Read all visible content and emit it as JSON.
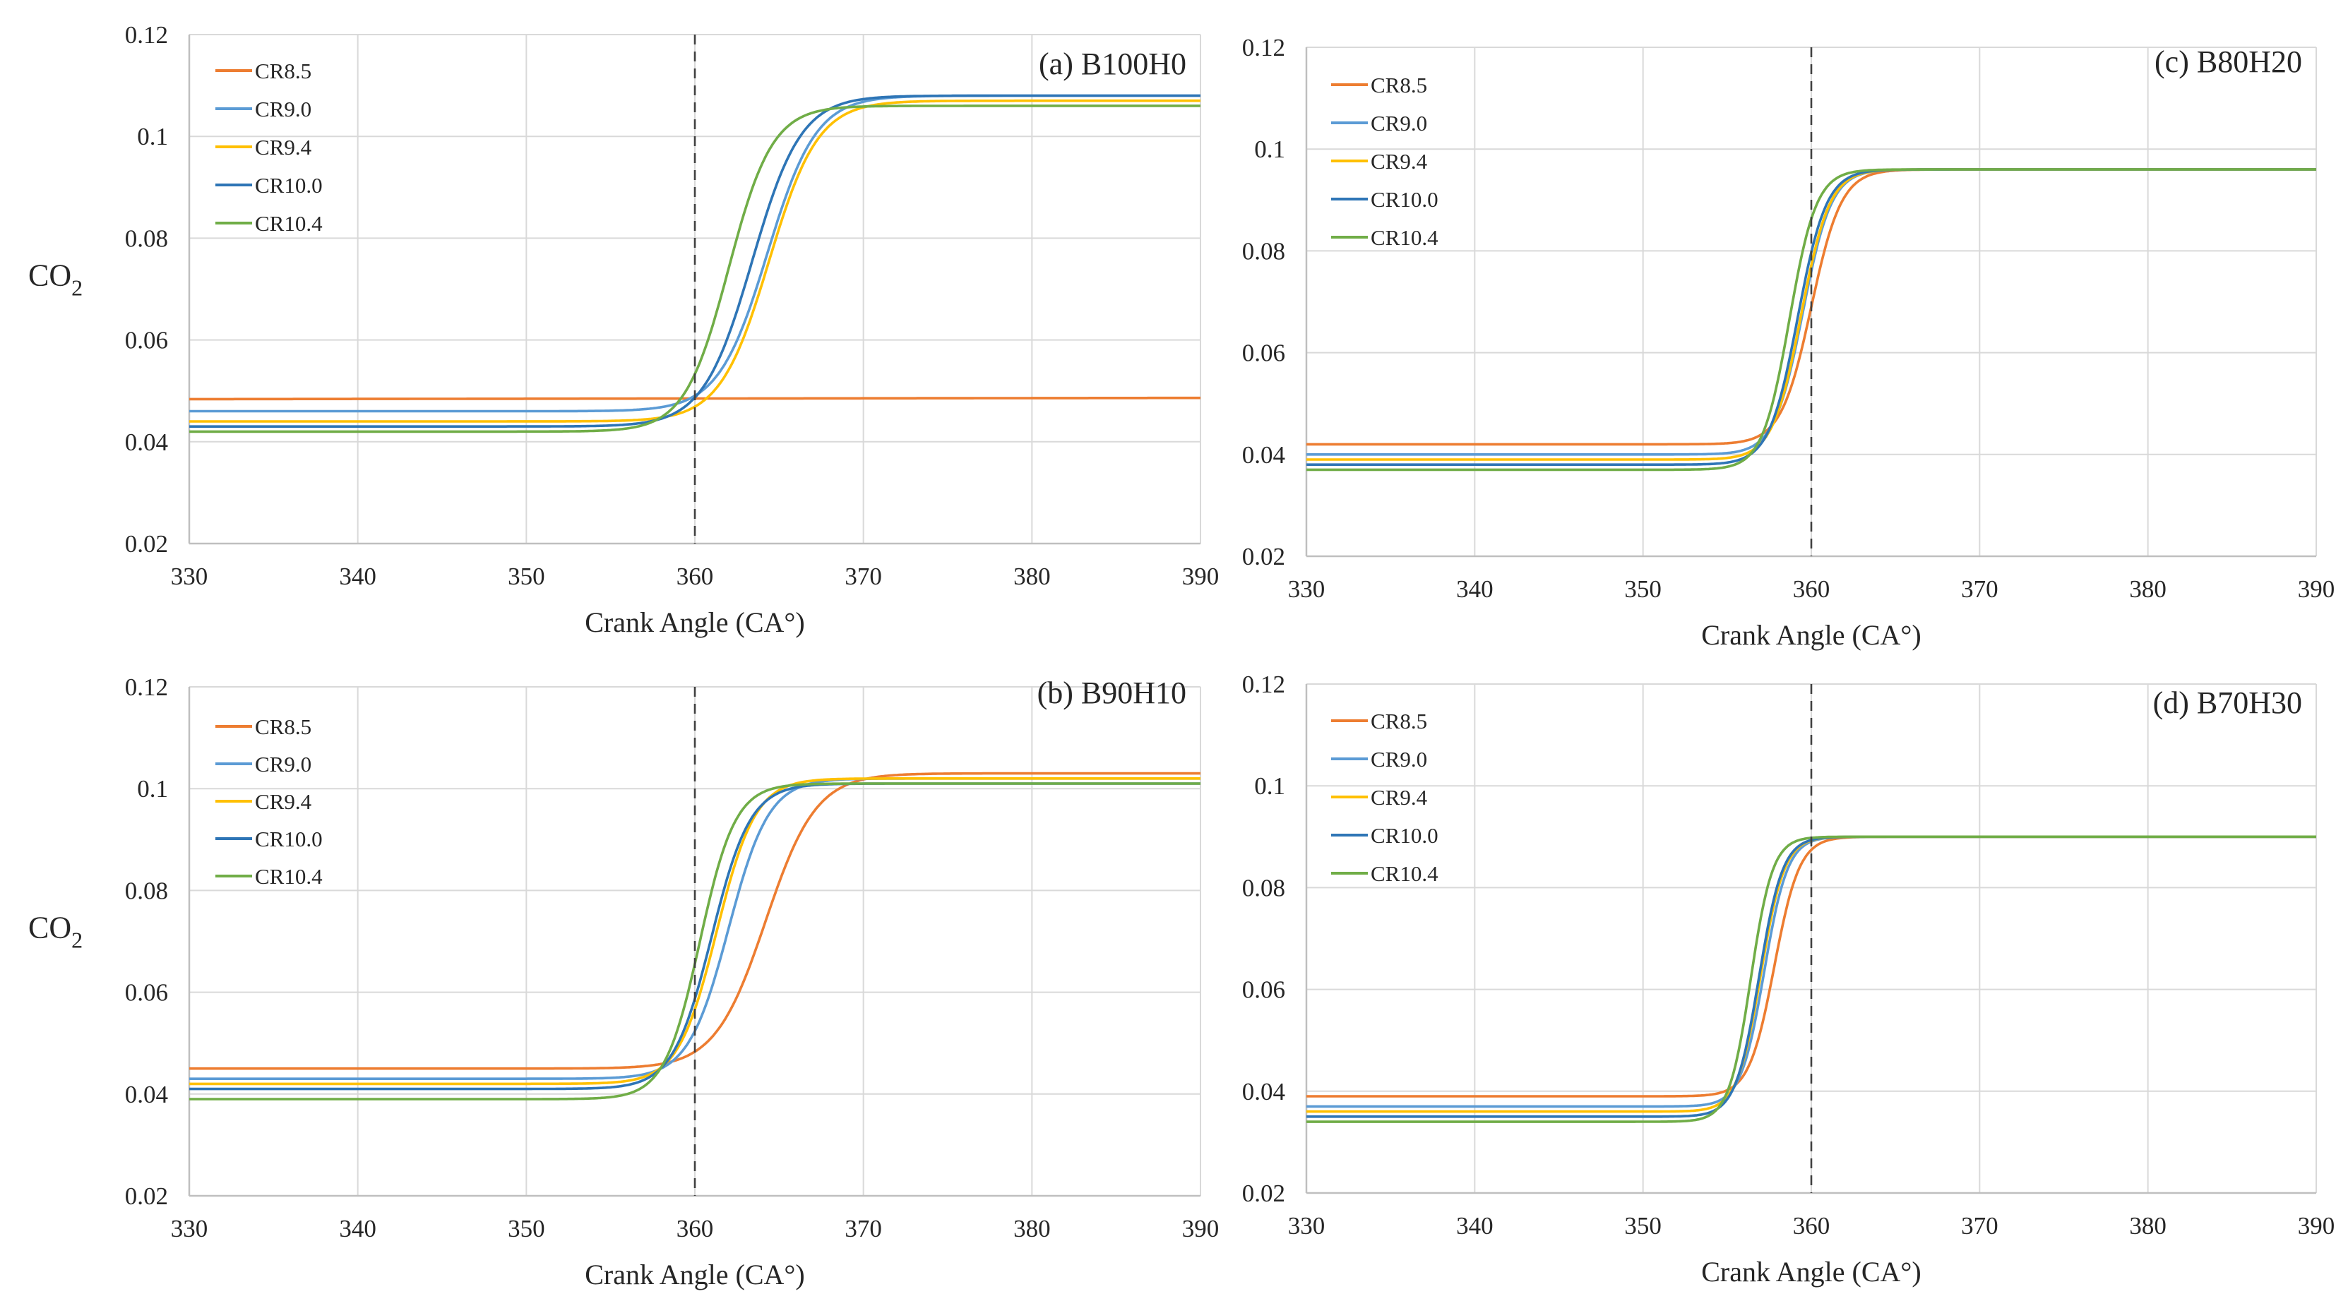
{
  "figure": {
    "xlabel": "Crank Angle (CA°)",
    "ylabel_main": "CO",
    "ylabel_sub": "2"
  },
  "colors": {
    "CR8.5": "#ED7D31",
    "CR9.0": "#5B9BD5",
    "CR9.4": "#FFC000",
    "CR10.0": "#2E75B6",
    "CR10.4": "#70AD47",
    "grid": "#D9D9D9",
    "axis": "#BFBFBF",
    "marker": "#404040"
  },
  "chart_data": [
    {
      "type": "line",
      "title": "(a) B100H0",
      "xlabel": "Crank Angle (CA°)",
      "ylabel": "CO2",
      "xlim": [
        330,
        390
      ],
      "ylim": [
        0.02,
        0.12
      ],
      "xticks": [
        330,
        340,
        350,
        360,
        370,
        380,
        390
      ],
      "yticks": [
        "0.02",
        "0.04",
        "0.06",
        "0.08",
        "0.1",
        "0.12"
      ],
      "vline": 360,
      "legend_position": "top-left",
      "series": [
        {
          "name": "CR8.5",
          "initial": 0.048,
          "final": 0.049,
          "midpoint": 361,
          "width": 60
        },
        {
          "name": "CR9.0",
          "initial": 0.046,
          "final": 0.108,
          "midpoint": 364.3,
          "width": 1.45
        },
        {
          "name": "CR9.4",
          "initial": 0.044,
          "final": 0.107,
          "midpoint": 364.4,
          "width": 1.45
        },
        {
          "name": "CR10.0",
          "initial": 0.043,
          "final": 0.108,
          "midpoint": 363.4,
          "width": 1.45
        },
        {
          "name": "CR10.4",
          "initial": 0.042,
          "final": 0.106,
          "midpoint": 362.0,
          "width": 1.3
        }
      ]
    },
    {
      "type": "line",
      "title": "(b) B90H10",
      "xlabel": "Crank Angle (CA°)",
      "ylabel": "CO2",
      "xlim": [
        330,
        390
      ],
      "ylim": [
        0.02,
        0.12
      ],
      "xticks": [
        330,
        340,
        350,
        360,
        370,
        380,
        390
      ],
      "yticks": [
        "0.02",
        "0.04",
        "0.06",
        "0.08",
        "0.1",
        "0.12"
      ],
      "vline": 360,
      "legend_position": "top-left",
      "series": [
        {
          "name": "CR8.5",
          "initial": 0.045,
          "final": 0.103,
          "midpoint": 364.2,
          "width": 1.5
        },
        {
          "name": "CR9.0",
          "initial": 0.043,
          "final": 0.102,
          "midpoint": 362.0,
          "width": 1.2
        },
        {
          "name": "CR9.4",
          "initial": 0.042,
          "final": 0.102,
          "midpoint": 361.3,
          "width": 1.15
        },
        {
          "name": "CR10.0",
          "initial": 0.041,
          "final": 0.101,
          "midpoint": 361.0,
          "width": 1.15
        },
        {
          "name": "CR10.4",
          "initial": 0.039,
          "final": 0.101,
          "midpoint": 360.3,
          "width": 1.05
        }
      ]
    },
    {
      "type": "line",
      "title": "(c) B80H20",
      "xlabel": "Crank Angle (CA°)",
      "ylabel": "CO2",
      "xlim": [
        330,
        390
      ],
      "ylim": [
        0.02,
        0.12
      ],
      "xticks": [
        330,
        340,
        350,
        360,
        370,
        380,
        390
      ],
      "yticks": [
        "0.02",
        "0.04",
        "0.06",
        "0.08",
        "0.1",
        "0.12"
      ],
      "vline": 360,
      "legend_position": "top-left",
      "series": [
        {
          "name": "CR8.5",
          "initial": 0.042,
          "final": 0.096,
          "midpoint": 360.0,
          "width": 0.9
        },
        {
          "name": "CR9.0",
          "initial": 0.04,
          "final": 0.096,
          "midpoint": 359.5,
          "width": 0.85
        },
        {
          "name": "CR9.4",
          "initial": 0.039,
          "final": 0.096,
          "midpoint": 359.4,
          "width": 0.85
        },
        {
          "name": "CR10.0",
          "initial": 0.038,
          "final": 0.096,
          "midpoint": 359.2,
          "width": 0.85
        },
        {
          "name": "CR10.4",
          "initial": 0.037,
          "final": 0.096,
          "midpoint": 358.7,
          "width": 0.8
        }
      ]
    },
    {
      "type": "line",
      "title": "(d) B70H30",
      "xlabel": "Crank Angle (CA°)",
      "ylabel": "CO2",
      "xlim": [
        330,
        390
      ],
      "ylim": [
        0.02,
        0.12
      ],
      "xticks": [
        330,
        340,
        350,
        360,
        370,
        380,
        390
      ],
      "yticks": [
        "0.02",
        "0.04",
        "0.06",
        "0.08",
        "0.1",
        "0.12"
      ],
      "vline": 360,
      "legend_position": "top-left",
      "series": [
        {
          "name": "CR8.5",
          "initial": 0.039,
          "final": 0.09,
          "midpoint": 357.8,
          "width": 0.75
        },
        {
          "name": "CR9.0",
          "initial": 0.037,
          "final": 0.09,
          "midpoint": 357.2,
          "width": 0.7
        },
        {
          "name": "CR9.4",
          "initial": 0.036,
          "final": 0.09,
          "midpoint": 357.0,
          "width": 0.7
        },
        {
          "name": "CR10.0",
          "initial": 0.035,
          "final": 0.09,
          "midpoint": 356.9,
          "width": 0.7
        },
        {
          "name": "CR10.4",
          "initial": 0.034,
          "final": 0.09,
          "midpoint": 356.4,
          "width": 0.65
        }
      ]
    }
  ]
}
